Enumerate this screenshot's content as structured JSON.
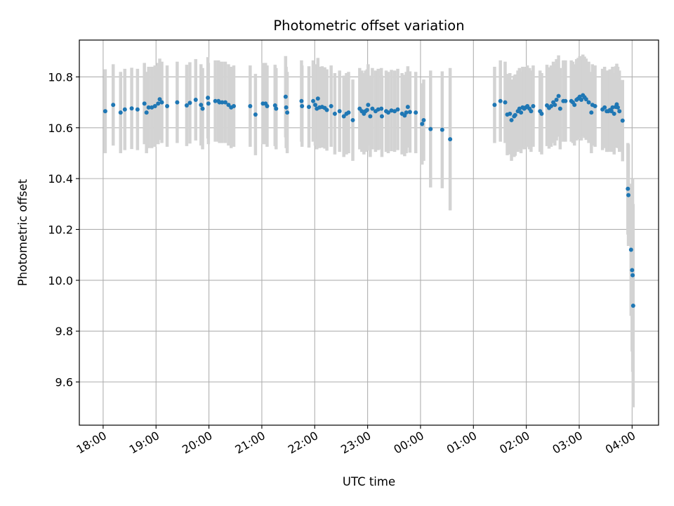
{
  "chart_data": {
    "type": "scatter",
    "title": "Photometric offset variation",
    "xlabel": "UTC time",
    "ylabel": "Photometric offset",
    "xlim": [
      17.55,
      28.5
    ],
    "ylim": [
      9.43,
      10.945
    ],
    "grid": true,
    "marker_color": "#1f77b4",
    "errorbar_color": "#d3d3d3",
    "x_ticks": [
      {
        "value": 18,
        "label": "18:00"
      },
      {
        "value": 19,
        "label": "19:00"
      },
      {
        "value": 20,
        "label": "20:00"
      },
      {
        "value": 21,
        "label": "21:00"
      },
      {
        "value": 22,
        "label": "22:00"
      },
      {
        "value": 23,
        "label": "23:00"
      },
      {
        "value": 24,
        "label": "00:00"
      },
      {
        "value": 25,
        "label": "01:00"
      },
      {
        "value": 26,
        "label": "02:00"
      },
      {
        "value": 27,
        "label": "03:00"
      },
      {
        "value": 28,
        "label": "04:00"
      }
    ],
    "y_ticks": [
      {
        "value": 9.6,
        "label": "9.6"
      },
      {
        "value": 9.8,
        "label": "9.8"
      },
      {
        "value": 10.0,
        "label": "10.0"
      },
      {
        "value": 10.2,
        "label": "10.2"
      },
      {
        "value": 10.4,
        "label": "10.4"
      },
      {
        "value": 10.6,
        "label": "10.6"
      },
      {
        "value": 10.8,
        "label": "10.8"
      }
    ],
    "series": [
      {
        "name": "offset",
        "points": [
          [
            18.04,
            10.665,
            0.165
          ],
          [
            18.19,
            10.69,
            0.16
          ],
          [
            18.33,
            10.66,
            0.16
          ],
          [
            18.41,
            10.672,
            0.16
          ],
          [
            18.54,
            10.676,
            0.16
          ],
          [
            18.65,
            10.672,
            0.16
          ],
          [
            18.78,
            10.695,
            0.16
          ],
          [
            18.82,
            10.66,
            0.16
          ],
          [
            18.86,
            10.68,
            0.16
          ],
          [
            18.92,
            10.68,
            0.16
          ],
          [
            18.98,
            10.685,
            0.16
          ],
          [
            19.04,
            10.695,
            0.16
          ],
          [
            19.07,
            10.712,
            0.16
          ],
          [
            19.11,
            10.7,
            0.16
          ],
          [
            19.21,
            10.685,
            0.16
          ],
          [
            19.4,
            10.7,
            0.16
          ],
          [
            19.58,
            10.688,
            0.16
          ],
          [
            19.64,
            10.698,
            0.16
          ],
          [
            19.75,
            10.71,
            0.16
          ],
          [
            19.85,
            10.69,
            0.16
          ],
          [
            19.88,
            10.675,
            0.16
          ],
          [
            19.98,
            10.718,
            0.16
          ],
          [
            19.99,
            10.695,
            0.16
          ],
          [
            20.12,
            10.705,
            0.16
          ],
          [
            20.18,
            10.705,
            0.16
          ],
          [
            20.2,
            10.7,
            0.16
          ],
          [
            20.25,
            10.7,
            0.16
          ],
          [
            20.31,
            10.7,
            0.16
          ],
          [
            20.37,
            10.69,
            0.16
          ],
          [
            20.42,
            10.68,
            0.16
          ],
          [
            20.47,
            10.685,
            0.16
          ],
          [
            20.78,
            10.685,
            0.16
          ],
          [
            20.88,
            10.652,
            0.16
          ],
          [
            21.02,
            10.695,
            0.16
          ],
          [
            21.07,
            10.695,
            0.16
          ],
          [
            21.1,
            10.685,
            0.16
          ],
          [
            21.25,
            10.688,
            0.16
          ],
          [
            21.27,
            10.675,
            0.16
          ],
          [
            21.45,
            10.722,
            0.16
          ],
          [
            21.46,
            10.68,
            0.16
          ],
          [
            21.48,
            10.66,
            0.16
          ],
          [
            21.75,
            10.705,
            0.16
          ],
          [
            21.76,
            10.685,
            0.16
          ],
          [
            21.89,
            10.682,
            0.16
          ],
          [
            21.97,
            10.705,
            0.16
          ],
          [
            22.01,
            10.69,
            0.16
          ],
          [
            22.04,
            10.675,
            0.16
          ],
          [
            22.06,
            10.715,
            0.16
          ],
          [
            22.09,
            10.68,
            0.16
          ],
          [
            22.14,
            10.682,
            0.16
          ],
          [
            22.19,
            10.678,
            0.16
          ],
          [
            22.23,
            10.67,
            0.16
          ],
          [
            22.31,
            10.685,
            0.16
          ],
          [
            22.38,
            10.655,
            0.16
          ],
          [
            22.47,
            10.665,
            0.16
          ],
          [
            22.55,
            10.645,
            0.16
          ],
          [
            22.6,
            10.655,
            0.16
          ],
          [
            22.64,
            10.66,
            0.16
          ],
          [
            22.72,
            10.63,
            0.16
          ],
          [
            22.85,
            10.675,
            0.16
          ],
          [
            22.89,
            10.665,
            0.16
          ],
          [
            22.93,
            10.655,
            0.16
          ],
          [
            22.96,
            10.665,
            0.16
          ],
          [
            22.99,
            10.67,
            0.16
          ],
          [
            23.01,
            10.69,
            0.16
          ],
          [
            23.05,
            10.645,
            0.16
          ],
          [
            23.09,
            10.675,
            0.16
          ],
          [
            23.15,
            10.665,
            0.16
          ],
          [
            23.2,
            10.672,
            0.16
          ],
          [
            23.26,
            10.675,
            0.16
          ],
          [
            23.27,
            10.645,
            0.16
          ],
          [
            23.35,
            10.665,
            0.16
          ],
          [
            23.39,
            10.66,
            0.16
          ],
          [
            23.45,
            10.668,
            0.16
          ],
          [
            23.51,
            10.665,
            0.16
          ],
          [
            23.57,
            10.672,
            0.16
          ],
          [
            23.65,
            10.655,
            0.16
          ],
          [
            23.7,
            10.648,
            0.16
          ],
          [
            23.73,
            10.66,
            0.16
          ],
          [
            23.76,
            10.682,
            0.16
          ],
          [
            23.8,
            10.662,
            0.16
          ],
          [
            23.91,
            10.66,
            0.16
          ],
          [
            24.03,
            10.615,
            0.16
          ],
          [
            24.06,
            10.63,
            0.16
          ],
          [
            24.19,
            10.595,
            0.23
          ],
          [
            24.41,
            10.592,
            0.23
          ],
          [
            24.56,
            10.555,
            0.28
          ],
          [
            25.4,
            10.69,
            0.15
          ],
          [
            25.51,
            10.705,
            0.16
          ],
          [
            25.6,
            10.7,
            0.16
          ],
          [
            25.64,
            10.652,
            0.16
          ],
          [
            25.69,
            10.655,
            0.16
          ],
          [
            25.72,
            10.63,
            0.16
          ],
          [
            25.77,
            10.645,
            0.16
          ],
          [
            25.79,
            10.65,
            0.16
          ],
          [
            25.84,
            10.665,
            0.16
          ],
          [
            25.87,
            10.675,
            0.16
          ],
          [
            25.9,
            10.66,
            0.16
          ],
          [
            25.93,
            10.68,
            0.16
          ],
          [
            25.96,
            10.675,
            0.16
          ],
          [
            25.99,
            10.68,
            0.16
          ],
          [
            26.02,
            10.685,
            0.16
          ],
          [
            26.06,
            10.675,
            0.16
          ],
          [
            26.09,
            10.665,
            0.16
          ],
          [
            26.13,
            10.685,
            0.16
          ],
          [
            26.26,
            10.665,
            0.16
          ],
          [
            26.29,
            10.655,
            0.16
          ],
          [
            26.39,
            10.688,
            0.16
          ],
          [
            26.43,
            10.678,
            0.16
          ],
          [
            26.47,
            10.685,
            0.16
          ],
          [
            26.51,
            10.7,
            0.16
          ],
          [
            26.54,
            10.69,
            0.16
          ],
          [
            26.57,
            10.71,
            0.16
          ],
          [
            26.61,
            10.725,
            0.16
          ],
          [
            26.64,
            10.675,
            0.16
          ],
          [
            26.7,
            10.705,
            0.16
          ],
          [
            26.74,
            10.705,
            0.16
          ],
          [
            26.85,
            10.705,
            0.16
          ],
          [
            26.88,
            10.7,
            0.16
          ],
          [
            26.91,
            10.69,
            0.16
          ],
          [
            26.95,
            10.71,
            0.16
          ],
          [
            26.98,
            10.715,
            0.16
          ],
          [
            27.01,
            10.722,
            0.16
          ],
          [
            27.04,
            10.71,
            0.16
          ],
          [
            27.07,
            10.728,
            0.16
          ],
          [
            27.1,
            10.72,
            0.16
          ],
          [
            27.13,
            10.712,
            0.16
          ],
          [
            27.18,
            10.7,
            0.16
          ],
          [
            27.23,
            10.66,
            0.16
          ],
          [
            27.25,
            10.69,
            0.16
          ],
          [
            27.3,
            10.685,
            0.16
          ],
          [
            27.44,
            10.672,
            0.16
          ],
          [
            27.48,
            10.68,
            0.16
          ],
          [
            27.52,
            10.665,
            0.16
          ],
          [
            27.55,
            10.665,
            0.16
          ],
          [
            27.58,
            10.67,
            0.16
          ],
          [
            27.61,
            10.665,
            0.16
          ],
          [
            27.63,
            10.68,
            0.16
          ],
          [
            27.66,
            10.655,
            0.16
          ],
          [
            27.69,
            10.682,
            0.16
          ],
          [
            27.71,
            10.692,
            0.16
          ],
          [
            27.73,
            10.68,
            0.16
          ],
          [
            27.76,
            10.665,
            0.16
          ],
          [
            27.82,
            10.628,
            0.16
          ],
          [
            27.92,
            10.36,
            0.18
          ],
          [
            27.93,
            10.335,
            0.2
          ],
          [
            27.98,
            10.12,
            0.26
          ],
          [
            28.0,
            10.04,
            0.32
          ],
          [
            28.01,
            10.02,
            0.38
          ],
          [
            28.02,
            9.9,
            0.4
          ]
        ]
      }
    ]
  }
}
